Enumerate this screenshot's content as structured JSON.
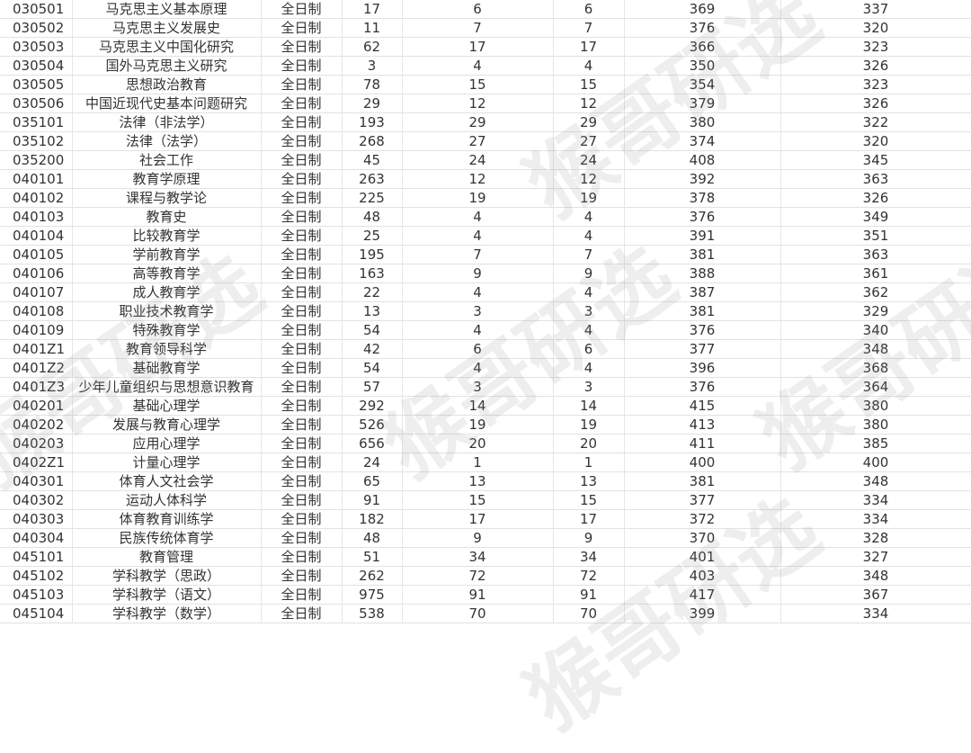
{
  "watermark": "猴哥研选",
  "rows": [
    [
      "030501",
      "马克思主义基本原理",
      "全日制",
      "17",
      "6",
      "6",
      "369",
      "337"
    ],
    [
      "030502",
      "马克思主义发展史",
      "全日制",
      "11",
      "7",
      "7",
      "376",
      "320"
    ],
    [
      "030503",
      "马克思主义中国化研究",
      "全日制",
      "62",
      "17",
      "17",
      "366",
      "323"
    ],
    [
      "030504",
      "国外马克思主义研究",
      "全日制",
      "3",
      "4",
      "4",
      "350",
      "326"
    ],
    [
      "030505",
      "思想政治教育",
      "全日制",
      "78",
      "15",
      "15",
      "354",
      "323"
    ],
    [
      "030506",
      "中国近现代史基本问题研究",
      "全日制",
      "29",
      "12",
      "12",
      "379",
      "326"
    ],
    [
      "035101",
      "法律（非法学）",
      "全日制",
      "193",
      "29",
      "29",
      "380",
      "322"
    ],
    [
      "035102",
      "法律（法学）",
      "全日制",
      "268",
      "27",
      "27",
      "374",
      "320"
    ],
    [
      "035200",
      "社会工作",
      "全日制",
      "45",
      "24",
      "24",
      "408",
      "345"
    ],
    [
      "040101",
      "教育学原理",
      "全日制",
      "263",
      "12",
      "12",
      "392",
      "363"
    ],
    [
      "040102",
      "课程与教学论",
      "全日制",
      "225",
      "19",
      "19",
      "378",
      "326"
    ],
    [
      "040103",
      "教育史",
      "全日制",
      "48",
      "4",
      "4",
      "376",
      "349"
    ],
    [
      "040104",
      "比较教育学",
      "全日制",
      "25",
      "4",
      "4",
      "391",
      "351"
    ],
    [
      "040105",
      "学前教育学",
      "全日制",
      "195",
      "7",
      "7",
      "381",
      "363"
    ],
    [
      "040106",
      "高等教育学",
      "全日制",
      "163",
      "9",
      "9",
      "388",
      "361"
    ],
    [
      "040107",
      "成人教育学",
      "全日制",
      "22",
      "4",
      "4",
      "387",
      "362"
    ],
    [
      "040108",
      "职业技术教育学",
      "全日制",
      "13",
      "3",
      "3",
      "381",
      "329"
    ],
    [
      "040109",
      "特殊教育学",
      "全日制",
      "54",
      "4",
      "4",
      "376",
      "340"
    ],
    [
      "0401Z1",
      "教育领导科学",
      "全日制",
      "42",
      "6",
      "6",
      "377",
      "348"
    ],
    [
      "0401Z2",
      "基础教育学",
      "全日制",
      "54",
      "4",
      "4",
      "396",
      "368"
    ],
    [
      "0401Z3",
      "少年儿童组织与思想意识教育",
      "全日制",
      "57",
      "3",
      "3",
      "376",
      "364"
    ],
    [
      "040201",
      "基础心理学",
      "全日制",
      "292",
      "14",
      "14",
      "415",
      "380"
    ],
    [
      "040202",
      "发展与教育心理学",
      "全日制",
      "526",
      "19",
      "19",
      "413",
      "380"
    ],
    [
      "040203",
      "应用心理学",
      "全日制",
      "656",
      "20",
      "20",
      "411",
      "385"
    ],
    [
      "0402Z1",
      "计量心理学",
      "全日制",
      "24",
      "1",
      "1",
      "400",
      "400"
    ],
    [
      "040301",
      "体育人文社会学",
      "全日制",
      "65",
      "13",
      "13",
      "381",
      "348"
    ],
    [
      "040302",
      "运动人体科学",
      "全日制",
      "91",
      "15",
      "15",
      "377",
      "334"
    ],
    [
      "040303",
      "体育教育训练学",
      "全日制",
      "182",
      "17",
      "17",
      "372",
      "334"
    ],
    [
      "040304",
      "民族传统体育学",
      "全日制",
      "48",
      "9",
      "9",
      "370",
      "328"
    ],
    [
      "045101",
      "教育管理",
      "全日制",
      "51",
      "34",
      "34",
      "401",
      "327"
    ],
    [
      "045102",
      "学科教学（思政）",
      "全日制",
      "262",
      "72",
      "72",
      "403",
      "348"
    ],
    [
      "045103",
      "学科教学（语文）",
      "全日制",
      "975",
      "91",
      "91",
      "417",
      "367"
    ],
    [
      "045104",
      "学科教学（数学）",
      "全日制",
      "538",
      "70",
      "70",
      "399",
      "334"
    ]
  ]
}
